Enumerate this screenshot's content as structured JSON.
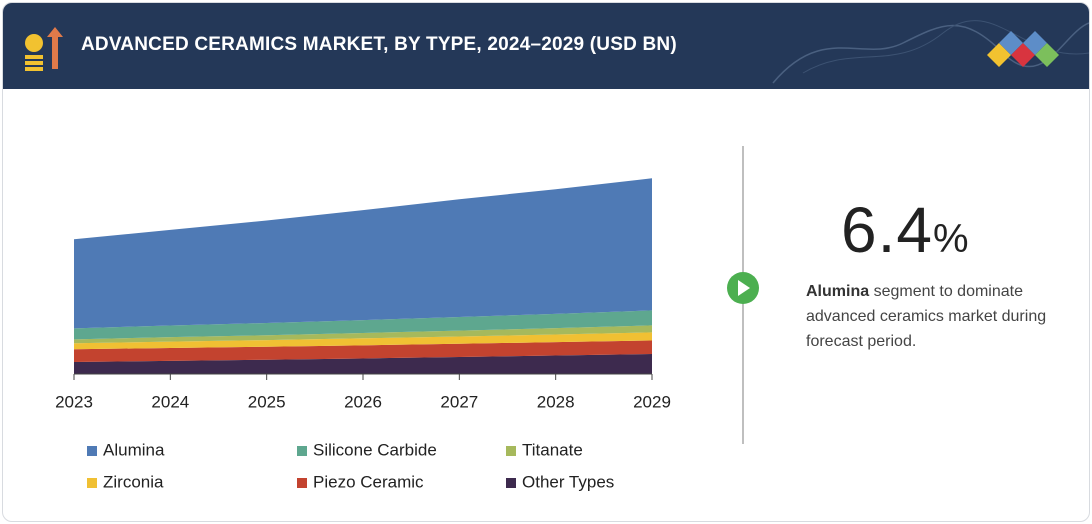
{
  "chart_data": {
    "type": "stacked-area",
    "title": "ADVANCED CERAMICS MARKET, BY TYPE, 2024–2029 (USD BN)",
    "categories": [
      "2023",
      "2024",
      "2025",
      "2026",
      "2027",
      "2028",
      "2029"
    ],
    "series": [
      {
        "name": "Alumina",
        "color": "#4f7ab5",
        "values": [
          6.99,
          7.5,
          8.04,
          8.62,
          9.24,
          9.77,
          10.36
        ]
      },
      {
        "name": "Silicone Carbide",
        "color": "#5ea78f",
        "values": [
          0.86,
          0.91,
          0.96,
          1.01,
          1.07,
          1.12,
          1.18
        ]
      },
      {
        "name": "Titanate",
        "color": "#a6b95c",
        "values": [
          0.31,
          0.35,
          0.38,
          0.42,
          0.46,
          0.5,
          0.55
        ]
      },
      {
        "name": "Zirconia",
        "color": "#f0c033",
        "values": [
          0.47,
          0.5,
          0.52,
          0.55,
          0.57,
          0.6,
          0.63
        ]
      },
      {
        "name": "Piezo Ceramic",
        "color": "#c3432f",
        "values": [
          1.0,
          1.01,
          1.02,
          1.03,
          1.04,
          1.05,
          1.06
        ]
      },
      {
        "name": "Other Types",
        "color": "#3d2a4e",
        "values": [
          0.94,
          1.03,
          1.12,
          1.22,
          1.33,
          1.45,
          1.57
        ]
      }
    ],
    "ylim": [
      0,
      20
    ]
  },
  "highlight": {
    "value": "6.4",
    "unit": "%",
    "segment": "Alumina",
    "text": "segment to dominate advanced ceramics market during forecast period."
  }
}
